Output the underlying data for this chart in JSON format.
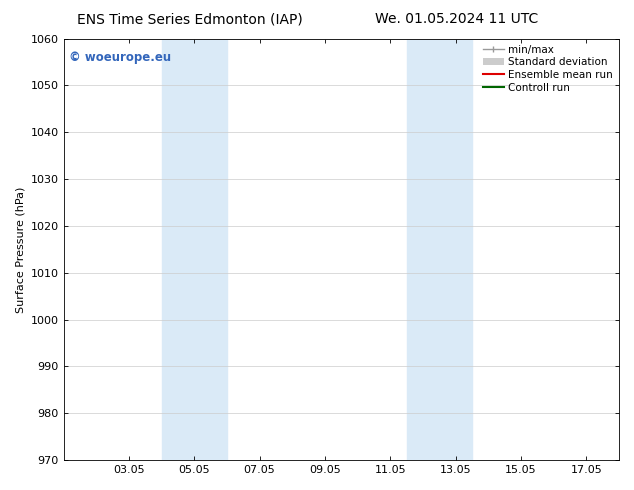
{
  "title_left": "ENS Time Series Edmonton (IAP)",
  "title_right": "We. 01.05.2024 11 UTC",
  "ylabel": "Surface Pressure (hPa)",
  "ylim": [
    970,
    1060
  ],
  "yticks": [
    970,
    980,
    990,
    1000,
    1010,
    1020,
    1030,
    1040,
    1050,
    1060
  ],
  "xtick_labels": [
    "03.05",
    "05.05",
    "07.05",
    "09.05",
    "11.05",
    "13.05",
    "15.05",
    "17.05"
  ],
  "xtick_positions": [
    3,
    5,
    7,
    9,
    11,
    13,
    15,
    17
  ],
  "xmin": 1,
  "xmax": 18,
  "shaded_bands": [
    {
      "xmin": 4.0,
      "xmax": 6.0,
      "color": "#daeaf7"
    },
    {
      "xmin": 11.5,
      "xmax": 13.5,
      "color": "#daeaf7"
    }
  ],
  "background_color": "#ffffff",
  "plot_bg_color": "#ffffff",
  "watermark_text": "© woeurope.eu",
  "watermark_color": "#3366bb",
  "legend_items": [
    {
      "label": "min/max",
      "color": "#999999",
      "lw": 1.0
    },
    {
      "label": "Standard deviation",
      "color": "#cccccc",
      "lw": 5
    },
    {
      "label": "Ensemble mean run",
      "color": "#dd0000",
      "lw": 1.5
    },
    {
      "label": "Controll run",
      "color": "#006600",
      "lw": 1.5
    }
  ],
  "title_fontsize": 10,
  "tick_fontsize": 8,
  "ylabel_fontsize": 8,
  "legend_fontsize": 7.5
}
